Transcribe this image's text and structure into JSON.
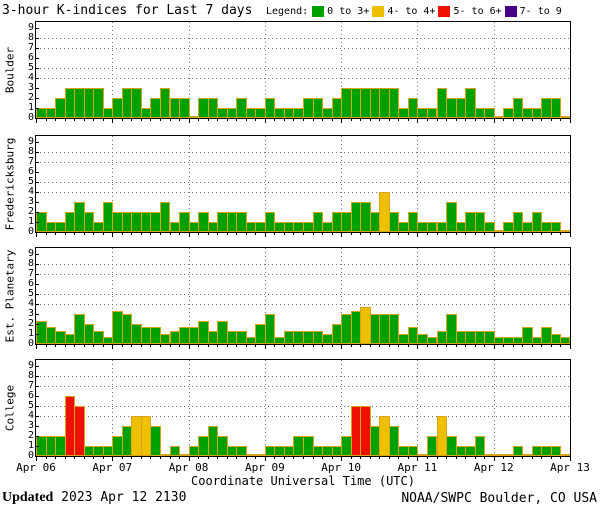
{
  "title": "3-hour K-indices for Last 7 days",
  "legend": {
    "label": "Legend:",
    "items": [
      {
        "label": "0 to 3+",
        "color": "#00A000"
      },
      {
        "label": "4- to 4+",
        "color": "#EFC002"
      },
      {
        "label": "5- to 6+",
        "color": "#EE1100"
      },
      {
        "label": "7- to 9",
        "color": "#470085"
      }
    ]
  },
  "colors": {
    "green": "#00A000",
    "yellow": "#EFC002",
    "red": "#EE1100",
    "purple": "#470085",
    "bar_outline": "#D6A51C",
    "grid": "#777777",
    "frame": "#000000"
  },
  "x_axis": {
    "title": "Coordinate Universal Time (UTC)",
    "tick_labels": [
      "Apr 06",
      "Apr 07",
      "Apr 08",
      "Apr 09",
      "Apr 10",
      "Apr 11",
      "Apr 12",
      "Apr 13"
    ]
  },
  "y_axis": {
    "min": 0,
    "max": 9,
    "tick_labels": [
      "9",
      "8",
      "7",
      "6",
      "5",
      "4",
      "3",
      "2",
      "1",
      "0"
    ]
  },
  "footer": {
    "updated_label": "Updated",
    "updated_value": " 2023 Apr 12 2130",
    "credit": "NOAA/SWPC Boulder, CO USA"
  },
  "chart_data": {
    "type": "bar",
    "days": 7,
    "bars_per_day": 8,
    "ylim": [
      0,
      9
    ],
    "y_gridlines": [
      4,
      5,
      7,
      8
    ],
    "legend_position": "top-right",
    "color_rule": "K < 3.6 green; 3.6-4.6 yellow; 4.6-6.6 red; >= 6.6 purple",
    "series": [
      {
        "name": "Boulder",
        "values": [
          1,
          1,
          2,
          3,
          3,
          3,
          3,
          1,
          2,
          3,
          3,
          1,
          2,
          3,
          2,
          2,
          0,
          2,
          2,
          1,
          1,
          2,
          1,
          1,
          2,
          1,
          1,
          1,
          2,
          2,
          1,
          2,
          3,
          3,
          3,
          3,
          3,
          3,
          1,
          2,
          1,
          1,
          3,
          2,
          2,
          3,
          1,
          1,
          0,
          1,
          2,
          1,
          1,
          2,
          2,
          0
        ]
      },
      {
        "name": "Fredericksburg",
        "values": [
          2,
          1,
          1,
          2,
          3,
          2,
          1,
          3,
          2,
          2,
          2,
          2,
          2,
          3,
          1,
          2,
          1,
          2,
          1,
          2,
          2,
          2,
          1,
          1,
          2,
          1,
          1,
          1,
          1,
          2,
          1,
          2,
          2,
          3,
          3,
          2,
          4,
          2,
          1,
          2,
          1,
          1,
          1,
          3,
          1,
          2,
          2,
          1,
          0,
          1,
          2,
          1,
          2,
          1,
          1,
          0
        ]
      },
      {
        "name": "Est. Planetary",
        "values": [
          2.3,
          1.7,
          1.3,
          1,
          3,
          2,
          1.3,
          0.7,
          3.3,
          3,
          2,
          1.7,
          1.7,
          1,
          1.3,
          1.7,
          1.7,
          2.3,
          1.3,
          2.3,
          1.3,
          1.3,
          0.7,
          2,
          3,
          0.7,
          1.3,
          1.3,
          1.3,
          1.3,
          1,
          2,
          3,
          3.3,
          3.7,
          3,
          3,
          3,
          1,
          1.7,
          1,
          0.7,
          1.3,
          3,
          1.3,
          1.3,
          1.3,
          1.3,
          0.7,
          0.7,
          0.7,
          1.7,
          0.7,
          1.7,
          1,
          0.7
        ]
      },
      {
        "name": "College",
        "values": [
          2,
          2,
          2,
          6,
          5,
          1,
          1,
          1,
          2,
          3,
          4,
          4,
          3,
          0,
          1,
          0,
          1,
          2,
          3,
          2,
          1,
          1,
          0,
          0,
          1,
          1,
          1,
          2,
          2,
          1,
          1,
          1,
          2,
          5,
          5,
          3,
          4,
          3,
          1,
          1,
          0,
          2,
          4,
          2,
          1,
          1,
          2,
          0,
          0,
          0,
          1,
          0,
          1,
          1,
          1,
          0
        ]
      }
    ]
  }
}
